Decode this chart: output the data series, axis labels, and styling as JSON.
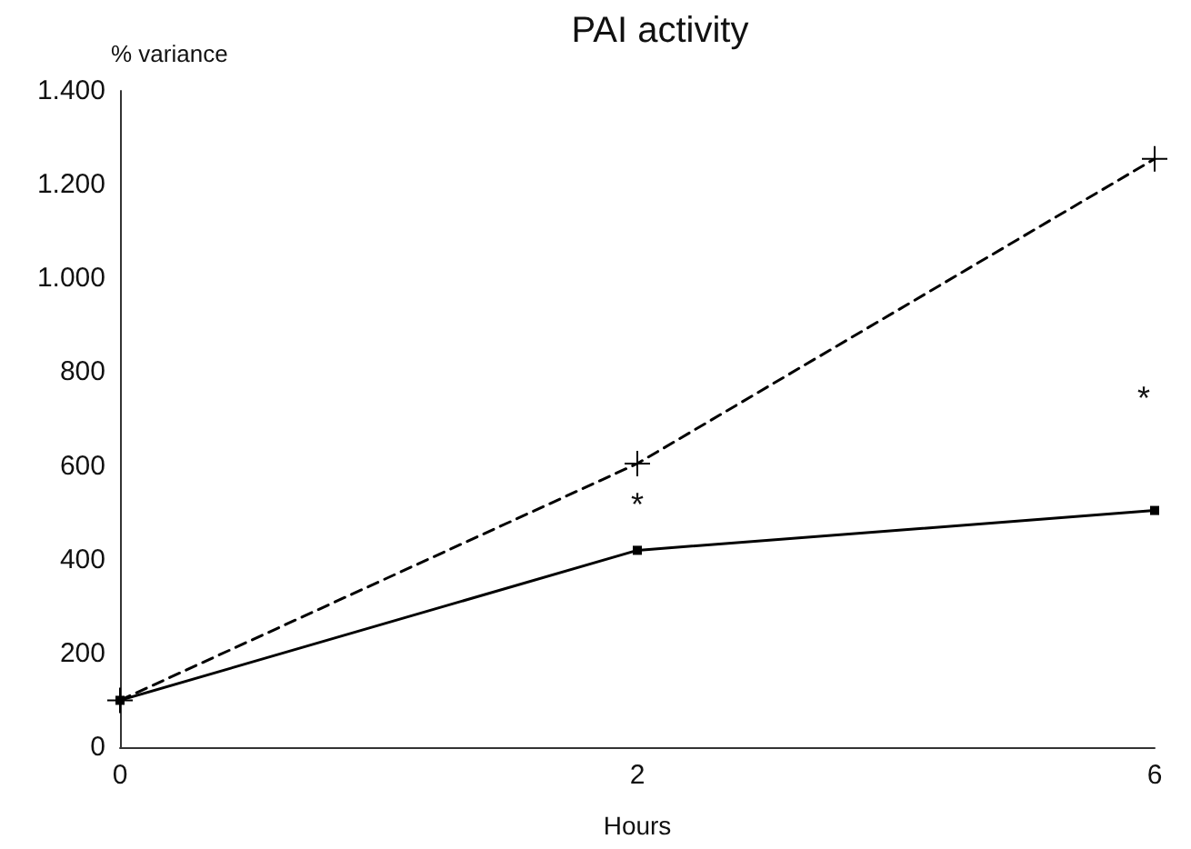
{
  "chart_data": {
    "type": "line",
    "title": "PAI activity",
    "xlabel": "Hours",
    "ylabel": "% variance",
    "categories": [
      "0",
      "2",
      "6"
    ],
    "series": [
      {
        "color": "#000000",
        "values": [
          100,
          420,
          505
        ],
        "marker": "square",
        "line_style": "solid"
      },
      {
        "color": "#000000",
        "values": [
          100,
          605,
          1255
        ],
        "marker": "cross",
        "line_style": "dashed"
      }
    ],
    "ylim": [
      0,
      1400
    ],
    "yticks": [
      0,
      200,
      400,
      600,
      800,
      {
        "value": 1000,
        "label": "1.000"
      },
      {
        "value": 1200,
        "label": "1.200"
      },
      {
        "value": 1400,
        "label": "1.400"
      }
    ],
    "annotations": [
      "*",
      "*"
    ],
    "grid": false
  }
}
